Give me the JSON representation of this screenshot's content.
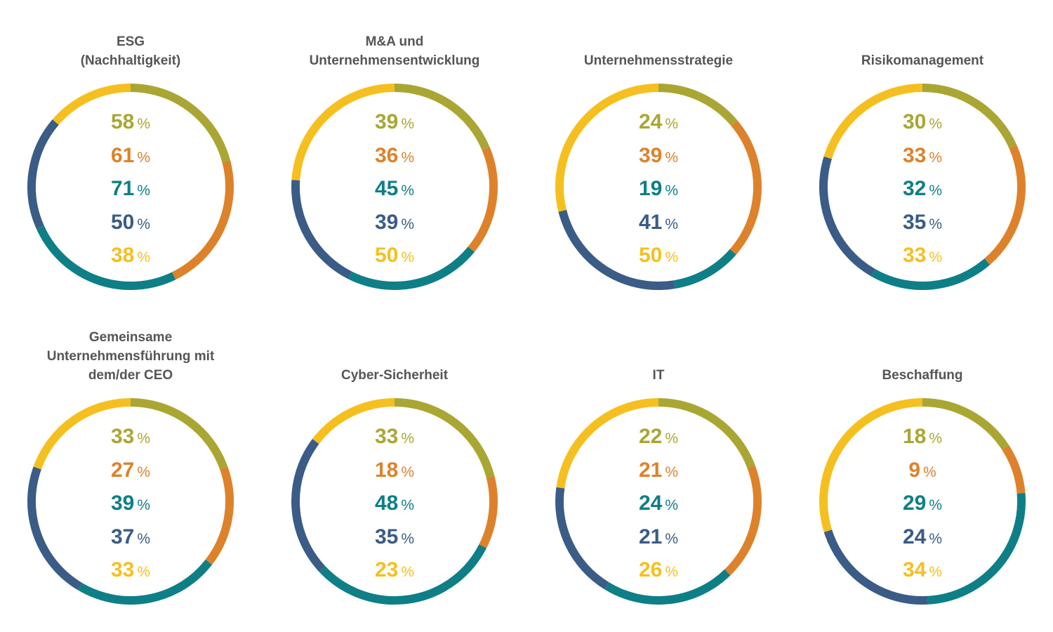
{
  "colors": {
    "olive": "#AAA633",
    "orange": "#DD822B",
    "teal": "#0E7F86",
    "navy": "#3A5C86",
    "yellow": "#F5C01F",
    "title": "#555555"
  },
  "unit": "%",
  "chart_data": [
    {
      "type": "pie",
      "title": "ESG\n(Nachhaltigkeit)",
      "series": [
        {
          "color": "olive",
          "value": 58
        },
        {
          "color": "orange",
          "value": 61
        },
        {
          "color": "teal",
          "value": 71
        },
        {
          "color": "navy",
          "value": 50
        },
        {
          "color": "yellow",
          "value": 38
        }
      ]
    },
    {
      "type": "pie",
      "title": "M&A und\nUnternehmensentwicklung",
      "series": [
        {
          "color": "olive",
          "value": 39
        },
        {
          "color": "orange",
          "value": 36
        },
        {
          "color": "teal",
          "value": 45
        },
        {
          "color": "navy",
          "value": 39
        },
        {
          "color": "yellow",
          "value": 50
        }
      ]
    },
    {
      "type": "pie",
      "title": "Unternehmensstrategie",
      "series": [
        {
          "color": "olive",
          "value": 24
        },
        {
          "color": "orange",
          "value": 39
        },
        {
          "color": "teal",
          "value": 19
        },
        {
          "color": "navy",
          "value": 41
        },
        {
          "color": "yellow",
          "value": 50
        }
      ]
    },
    {
      "type": "pie",
      "title": "Risikomanagement",
      "series": [
        {
          "color": "olive",
          "value": 30
        },
        {
          "color": "orange",
          "value": 33
        },
        {
          "color": "teal",
          "value": 32
        },
        {
          "color": "navy",
          "value": 35
        },
        {
          "color": "yellow",
          "value": 33
        }
      ]
    },
    {
      "type": "pie",
      "title": "Gemeinsame\nUnternehmensführung mit\ndem/der CEO",
      "series": [
        {
          "color": "olive",
          "value": 33
        },
        {
          "color": "orange",
          "value": 27
        },
        {
          "color": "teal",
          "value": 39
        },
        {
          "color": "navy",
          "value": 37
        },
        {
          "color": "yellow",
          "value": 33
        }
      ]
    },
    {
      "type": "pie",
      "title": "Cyber-Sicherheit",
      "series": [
        {
          "color": "olive",
          "value": 33
        },
        {
          "color": "orange",
          "value": 18
        },
        {
          "color": "teal",
          "value": 48
        },
        {
          "color": "navy",
          "value": 35
        },
        {
          "color": "yellow",
          "value": 23
        }
      ]
    },
    {
      "type": "pie",
      "title": "IT",
      "series": [
        {
          "color": "olive",
          "value": 22
        },
        {
          "color": "orange",
          "value": 21
        },
        {
          "color": "teal",
          "value": 24
        },
        {
          "color": "navy",
          "value": 21
        },
        {
          "color": "yellow",
          "value": 26
        }
      ]
    },
    {
      "type": "pie",
      "title": "Beschaffung",
      "series": [
        {
          "color": "olive",
          "value": 18
        },
        {
          "color": "orange",
          "value": 9
        },
        {
          "color": "teal",
          "value": 29
        },
        {
          "color": "navy",
          "value": 24
        },
        {
          "color": "yellow",
          "value": 34
        }
      ]
    }
  ]
}
